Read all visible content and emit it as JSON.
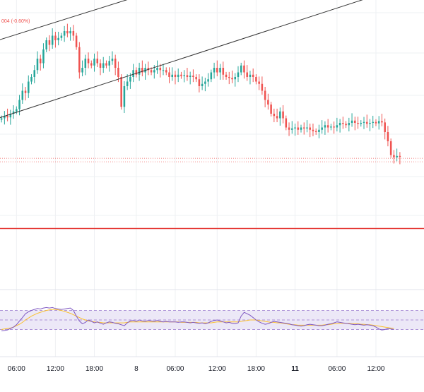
{
  "header": {
    "price_change_text": "004 (-0.60%)"
  },
  "colors": {
    "up": "#26a69a",
    "down": "#ef5350",
    "rsi_line": "#7e57c2",
    "rsi_ma": "#fbc02d",
    "rsi_band_fill": "#ece8f7",
    "rsi_band_line": "#9575cd",
    "channel": "#333333",
    "grid": "#eef0f3",
    "axis_text": "#131722",
    "pane_separator": "#e0e3eb",
    "horizontal_level": "#e53935"
  },
  "chart_data": [
    {
      "type": "candlestick",
      "title": "",
      "xlabel": "",
      "ylabel": "",
      "x_ticks": [
        "06:00",
        "12:00",
        "18:00",
        "8",
        "06:00",
        "12:00",
        "18:00",
        "11",
        "06:00",
        "12:00"
      ],
      "x_tick_bold": [
        false,
        false,
        false,
        false,
        false,
        false,
        false,
        true,
        false,
        false
      ],
      "grid": true,
      "trend_channel": {
        "upper": {
          "from": [
            -1,
            112
          ],
          "to": [
            101,
            140
          ]
        },
        "lower": {
          "from": [
            -1,
            95
          ],
          "to": [
            101,
            124
          ]
        }
      },
      "horizontal_level": 71,
      "series": [
        {
          "name": "",
          "values": [
            95,
            95.5,
            95.2,
            96,
            96.5,
            97,
            99,
            101,
            100.5,
            103,
            104,
            105.5,
            108,
            107,
            110,
            112,
            111,
            113,
            112,
            112.5,
            113,
            114,
            113.5,
            114,
            113,
            110.5,
            105,
            106,
            108,
            107,
            106.5,
            108,
            107,
            106,
            107,
            106.5,
            107.5,
            108,
            106,
            104,
            97.5,
            102,
            103,
            104,
            105.5,
            104.5,
            106,
            105,
            106,
            105.5,
            105,
            105.5,
            106,
            105.5,
            105.5,
            105,
            104,
            104.5,
            104,
            104.5,
            104.2,
            104.4,
            104,
            104.3,
            104,
            103.5,
            102,
            102.5,
            103,
            103.5,
            105,
            106,
            105,
            106,
            104.5,
            104,
            103.8,
            103.5,
            104,
            105,
            106.5,
            105,
            104,
            104.5,
            104,
            103,
            102.5,
            101,
            99,
            98,
            96,
            95.5,
            95,
            96.5,
            95,
            93,
            92.5,
            92.8,
            93,
            92.5,
            93,
            92.8,
            93,
            92.5,
            92.2,
            92,
            92.5,
            93,
            93.5,
            93,
            93.2,
            93,
            93.5,
            94,
            93.8,
            93.5,
            94,
            94.5,
            94,
            93.8,
            94,
            94.2,
            93.8,
            94,
            94.2,
            93.9,
            94.4,
            94.1,
            92,
            90,
            87,
            86.5,
            86.8,
            86.6
          ]
        }
      ],
      "last_price_label": "004 (-0.60%)"
    },
    {
      "type": "line",
      "title": "",
      "xlabel": "",
      "ylabel": "",
      "ylim": [
        10,
        90
      ],
      "bands": [
        70,
        50,
        30
      ],
      "series": [
        {
          "name": "",
          "values": [
            27,
            28,
            29,
            32,
            35,
            40,
            48,
            55,
            63,
            67,
            70,
            72,
            74,
            73,
            75,
            76,
            75,
            76,
            74,
            73,
            72,
            73,
            74,
            75,
            70,
            58,
            48,
            42,
            45,
            50,
            47,
            44,
            46,
            43,
            41,
            44,
            46,
            45,
            43,
            42,
            40,
            38,
            44,
            48,
            49,
            47,
            50,
            48,
            47,
            49,
            48,
            47,
            49,
            47,
            46,
            47,
            46,
            46,
            46,
            45,
            46,
            46,
            45,
            44,
            45,
            44,
            43,
            44,
            42,
            44,
            47,
            49,
            50,
            48,
            46,
            44,
            45,
            43,
            42,
            44,
            58,
            66,
            63,
            60,
            55,
            50,
            46,
            43,
            41,
            42,
            45,
            47,
            46,
            45,
            44,
            43,
            42,
            40,
            39,
            38,
            37,
            38,
            40,
            41,
            40,
            39,
            38,
            38,
            39,
            41,
            42,
            44,
            46,
            45,
            44,
            43,
            42,
            41,
            40,
            41,
            40,
            39,
            40,
            39,
            38,
            35,
            31,
            29,
            30,
            32,
            31,
            30
          ]
        },
        {
          "name": "",
          "values": [
            30,
            31,
            32,
            33,
            35,
            38,
            41,
            45,
            50,
            54,
            58,
            61,
            64,
            66,
            68,
            70,
            71,
            72,
            72,
            71,
            70,
            68,
            66,
            64,
            61,
            58,
            55,
            52,
            50,
            48,
            47,
            46,
            45,
            45,
            44,
            44,
            44,
            44,
            44,
            44,
            44,
            44,
            45,
            46,
            46,
            46,
            46,
            46,
            46,
            46,
            46,
            46,
            46,
            46,
            46,
            46,
            46,
            46,
            46,
            46,
            45,
            45,
            45,
            45,
            45,
            45,
            44,
            44,
            44,
            44,
            44,
            45,
            46,
            46,
            46,
            46,
            46,
            46,
            46,
            46,
            47,
            48,
            49,
            50,
            50,
            50,
            49,
            48,
            47,
            46,
            45,
            45,
            44,
            44,
            43,
            42,
            41,
            40,
            40,
            39,
            39,
            39,
            39,
            39,
            39,
            39,
            39,
            39,
            40,
            40,
            41,
            42,
            42,
            43,
            43,
            43,
            43,
            42,
            42,
            42,
            41,
            41,
            40,
            40,
            39,
            38,
            37,
            36,
            35,
            34,
            33,
            32
          ]
        }
      ]
    }
  ]
}
